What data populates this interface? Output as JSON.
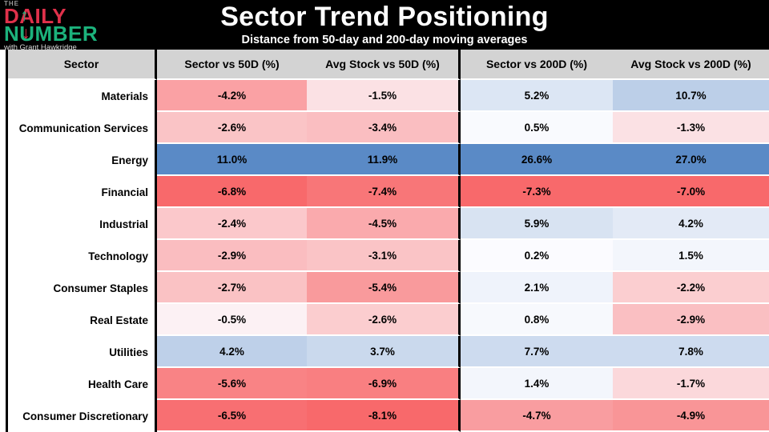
{
  "logo": {
    "prefix": "THE",
    "word1": "DAILY",
    "word2": "NUMBER",
    "tagline": "with Grant Hawkridge",
    "red": "#E0314B",
    "green": "#1CB27C"
  },
  "header": {
    "title": "Sector Trend Positioning",
    "subtitle": "Distance from 50-day and 200-day moving averages"
  },
  "icons": {
    "up_arrow": "↑",
    "down_arrow": "↓"
  },
  "table": {
    "headers": [
      "Sector",
      "Sector vs 50D (%)",
      "Avg Stock vs 50D (%)",
      "Sector vs 200D (%)",
      "Avg Stock vs 200D (%)"
    ],
    "rows": [
      {
        "sector": "Materials",
        "values": [
          "-4.2%",
          "-1.5%",
          "5.2%",
          "10.7%"
        ]
      },
      {
        "sector": "Communication Services",
        "values": [
          "-2.6%",
          "-3.4%",
          "0.5%",
          "-1.3%"
        ]
      },
      {
        "sector": "Energy",
        "values": [
          "11.0%",
          "11.9%",
          "26.6%",
          "27.0%"
        ]
      },
      {
        "sector": "Financial",
        "values": [
          "-6.8%",
          "-7.4%",
          "-7.3%",
          "-7.0%"
        ]
      },
      {
        "sector": "Industrial",
        "values": [
          "-2.4%",
          "-4.5%",
          "5.9%",
          "4.2%"
        ]
      },
      {
        "sector": "Technology",
        "values": [
          "-2.9%",
          "-3.1%",
          "0.2%",
          "1.5%"
        ]
      },
      {
        "sector": "Consumer Staples",
        "values": [
          "-2.7%",
          "-5.4%",
          "2.1%",
          "-2.2%"
        ]
      },
      {
        "sector": "Real Estate",
        "values": [
          "-0.5%",
          "-2.6%",
          "0.8%",
          "-2.9%"
        ]
      },
      {
        "sector": "Utilities",
        "values": [
          "4.2%",
          "3.7%",
          "7.7%",
          "7.8%"
        ]
      },
      {
        "sector": "Health Care",
        "values": [
          "-5.6%",
          "-6.9%",
          "1.4%",
          "-1.7%"
        ]
      },
      {
        "sector": "Consumer Discretionary",
        "values": [
          "-6.5%",
          "-8.1%",
          "-4.7%",
          "-4.9%"
        ]
      }
    ]
  },
  "colors": {
    "scale_negative": "#F8696B",
    "scale_midpoint": "#FCFCFF",
    "scale_positive": "#5A8AC6",
    "header_gray": "#D3D3D3",
    "band_black": "#000000"
  },
  "chart_data": {
    "type": "heatmap",
    "title": "Sector Trend Positioning",
    "subtitle": "Distance from 50-day and 200-day moving averages",
    "categories": [
      "Materials",
      "Communication Services",
      "Energy",
      "Financial",
      "Industrial",
      "Technology",
      "Consumer Staples",
      "Real Estate",
      "Utilities",
      "Health Care",
      "Consumer Discretionary"
    ],
    "series": [
      {
        "name": "Sector vs 50D (%)",
        "values": [
          -4.2,
          -2.6,
          11.0,
          -6.8,
          -2.4,
          -2.9,
          -2.7,
          -0.5,
          4.2,
          -5.6,
          -6.5
        ]
      },
      {
        "name": "Avg Stock vs 50D (%)",
        "values": [
          -1.5,
          -3.4,
          11.9,
          -7.4,
          -4.5,
          -3.1,
          -5.4,
          -2.6,
          3.7,
          -6.9,
          -8.1
        ]
      },
      {
        "name": "Sector vs 200D (%)",
        "values": [
          5.2,
          0.5,
          26.6,
          -7.3,
          5.9,
          0.2,
          2.1,
          0.8,
          7.7,
          1.4,
          -4.7
        ]
      },
      {
        "name": "Avg Stock vs 200D (%)",
        "values": [
          10.7,
          -1.3,
          27.0,
          -7.0,
          4.2,
          1.5,
          -2.2,
          -2.9,
          7.8,
          -1.7,
          -4.9
        ]
      }
    ],
    "color_scale": {
      "negative_end": "#F8696B",
      "midpoint_zero": "#FCFCFF",
      "positive_end": "#5A8AC6",
      "normalization": "per-column min-max, diverging at 0"
    },
    "legend_position": "none",
    "grid": false
  }
}
